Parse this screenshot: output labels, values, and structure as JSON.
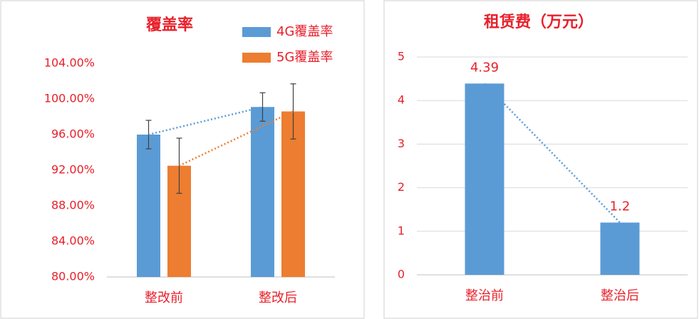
{
  "chart_data": [
    {
      "type": "bar",
      "title": "覆盖率",
      "categories": [
        "整改前",
        "整改后"
      ],
      "series": [
        {
          "name": "4G覆盖率",
          "color": "#5b9bd5",
          "values": [
            96.0,
            99.1
          ],
          "errors": [
            1.6,
            1.6
          ]
        },
        {
          "name": "5G覆盖率",
          "color": "#ed7d31",
          "values": [
            92.5,
            98.6
          ],
          "errors": [
            3.1,
            3.1
          ]
        }
      ],
      "ylim": [
        80,
        104
      ],
      "yticks": [
        {
          "value": 80,
          "label": "80.00%"
        },
        {
          "value": 84,
          "label": "84.00%"
        },
        {
          "value": 88,
          "label": "88.00%"
        },
        {
          "value": 92,
          "label": "92.00%"
        },
        {
          "value": 96,
          "label": "96.00%"
        },
        {
          "value": 100,
          "label": "100.00%"
        },
        {
          "value": 104,
          "label": "104.00%"
        }
      ],
      "grid": false,
      "trendline": true,
      "legend": "top-right"
    },
    {
      "type": "bar",
      "title": "租赁费（万元）",
      "categories": [
        "整治前",
        "整治后"
      ],
      "series": [
        {
          "color": "#5b9bd5",
          "values": [
            4.39,
            1.2
          ]
        }
      ],
      "ylim": [
        0,
        5
      ],
      "yticks": [
        0,
        1,
        2,
        3,
        4,
        5
      ],
      "grid": true,
      "trendline": true,
      "data_labels": true
    }
  ]
}
